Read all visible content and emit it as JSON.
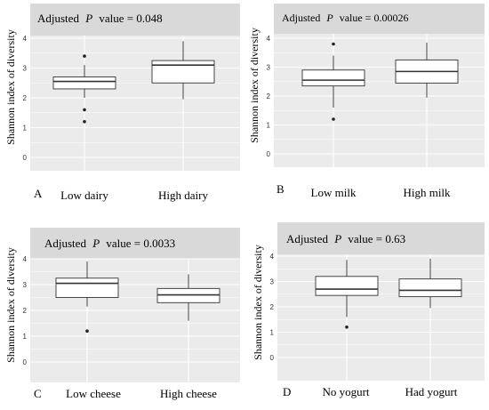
{
  "chart_data": [
    {
      "type": "box",
      "panel_label": "A",
      "annotation_prefix": "Adjusted",
      "annotation_italic": "P",
      "annotation_suffix": "value = 0.048",
      "ylabel": "Shannon index of diversity",
      "ylim": [
        -0.5,
        4.2
      ],
      "yticks": [
        "0",
        "1",
        "2",
        "3",
        "4"
      ],
      "grid": true,
      "categories": [
        "Low dairy",
        "High dairy"
      ],
      "boxes": [
        {
          "min": 2.0,
          "q1": 2.3,
          "median": 2.55,
          "q3": 2.7,
          "max": 3.1,
          "outliers": [
            3.4,
            1.6,
            1.2
          ]
        },
        {
          "min": 1.95,
          "q1": 2.5,
          "median": 3.1,
          "q3": 3.25,
          "max": 3.9,
          "outliers": []
        }
      ]
    },
    {
      "type": "box",
      "panel_label": "B",
      "annotation_prefix": "Adjusted",
      "annotation_italic": "P",
      "annotation_suffix": "value = 0.00026",
      "ylabel": "Shannon index of diversity",
      "ylim": [
        -0.5,
        4.2
      ],
      "yticks": [
        "0",
        "1",
        "2",
        "3",
        "4"
      ],
      "grid": true,
      "categories": [
        "Low milk",
        "High milk"
      ],
      "boxes": [
        {
          "min": 1.6,
          "q1": 2.35,
          "median": 2.55,
          "q3": 2.9,
          "max": 3.4,
          "outliers": [
            3.8,
            1.2
          ]
        },
        {
          "min": 1.95,
          "q1": 2.45,
          "median": 2.85,
          "q3": 3.25,
          "max": 3.85,
          "outliers": []
        }
      ]
    },
    {
      "type": "box",
      "panel_label": "C",
      "annotation_prefix": "Adjusted",
      "annotation_italic": "P",
      "annotation_suffix": "value = 0.0033",
      "ylabel": "Shannon index of diversity",
      "ylim": [
        -0.5,
        4.2
      ],
      "yticks": [
        "0",
        "1",
        "2",
        "3",
        "4"
      ],
      "grid": true,
      "categories": [
        "Low cheese",
        "High cheese"
      ],
      "boxes": [
        {
          "min": 2.15,
          "q1": 2.5,
          "median": 3.05,
          "q3": 3.25,
          "max": 3.9,
          "outliers": [
            1.2
          ]
        },
        {
          "min": 1.6,
          "q1": 2.3,
          "median": 2.6,
          "q3": 2.85,
          "max": 3.4,
          "outliers": []
        }
      ]
    },
    {
      "type": "box",
      "panel_label": "D",
      "annotation_prefix": "Adjusted",
      "annotation_italic": "P",
      "annotation_suffix": "value = 0.63",
      "ylabel": "Shannon index of diversity",
      "ylim": [
        -0.5,
        4.2
      ],
      "yticks": [
        "0",
        "1",
        "2",
        "3",
        "4"
      ],
      "grid": true,
      "categories": [
        "No yogurt",
        "Had yogurt"
      ],
      "boxes": [
        {
          "min": 1.6,
          "q1": 2.45,
          "median": 2.7,
          "q3": 3.2,
          "max": 3.85,
          "outliers": [
            1.2
          ]
        },
        {
          "min": 1.95,
          "q1": 2.4,
          "median": 2.65,
          "q3": 3.1,
          "max": 3.9,
          "outliers": []
        }
      ]
    }
  ]
}
